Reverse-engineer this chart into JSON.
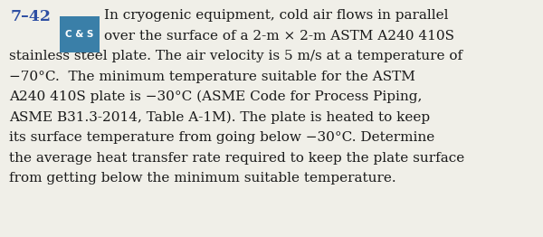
{
  "problem_number": "7–42",
  "problem_number_color": "#2e4fa3",
  "badge_text": "C & S",
  "badge_bg_color": "#3a7fa8",
  "badge_text_color": "#ffffff",
  "body_text_color": "#1a1a1a",
  "background_color": "#f0efe8",
  "font_size_number": 12.5,
  "font_size_badge": 7.5,
  "font_size_body": 11.0,
  "fig_width": 6.0,
  "fig_height": 2.62,
  "lines_indented": [
    "In cryogenic equipment, cold air flows in parallel",
    "over the surface of a 2-m × 2-m ASTM A240 410S"
  ],
  "lines_full": [
    "stainless steel plate. The air velocity is 5 m/s at a temperature of",
    "−70°C.  The minimum temperature suitable for the ASTM",
    "A240 410S plate is −30°C (ASME Code for Process Piping,",
    "ASME B31.3-2014, Table A-1M). The plate is heated to keep",
    "its surface temperature from going below −30°C. Determine",
    "the average heat transfer rate required to keep the plate surface",
    "from getting below the minimum suitable temperature."
  ]
}
